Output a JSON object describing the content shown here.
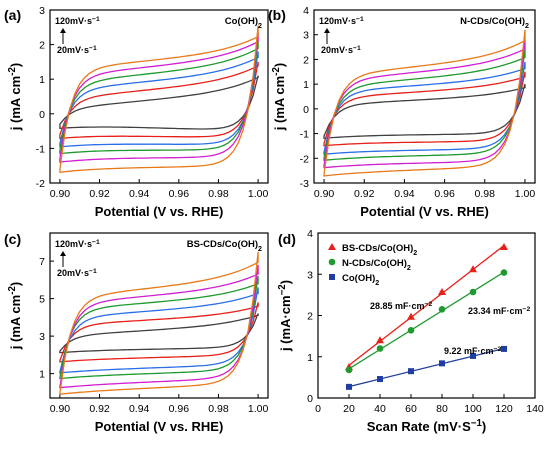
{
  "chart_data": [
    {
      "panel": "(a)",
      "type": "line",
      "title": "Co(OH)",
      "title_sub": "2",
      "xlabel": "Potential (V vs. RHE)",
      "ylabel_main": "j (mA cm",
      "ylabel_sup": "-2",
      "ylabel_close": ")",
      "xlim": [
        0.895,
        1.005
      ],
      "ylim": [
        -2,
        3
      ],
      "xticks": [
        "0.90",
        "0.92",
        "0.94",
        "0.96",
        "0.98",
        "1.00"
      ],
      "yticks": [
        "-2",
        "-1",
        "0",
        "1",
        "2",
        "3"
      ],
      "annotation_top": "120mV·s",
      "annotation_bottom": "20mV·s",
      "annotation_sup": "−1",
      "series": [
        {
          "scan_rate": 20,
          "color": "#404040",
          "upper": 0.2,
          "lower": -0.3,
          "upper_end": 1.1,
          "lower_end": -0.5
        },
        {
          "scan_rate": 40,
          "color": "#e8201a",
          "upper": 0.55,
          "lower": -0.6,
          "upper_end": 1.5,
          "lower_end": -0.7
        },
        {
          "scan_rate": 60,
          "color": "#2a6fe8",
          "upper": 0.85,
          "lower": -0.85,
          "upper_end": 1.8,
          "lower_end": -0.9
        },
        {
          "scan_rate": 80,
          "color": "#1f9a2e",
          "upper": 1.1,
          "lower": -1.05,
          "upper_end": 2.1,
          "lower_end": -1.05
        },
        {
          "scan_rate": 100,
          "color": "#d21fd2",
          "upper": 1.35,
          "lower": -1.3,
          "upper_end": 2.35,
          "lower_end": -1.25
        },
        {
          "scan_rate": 120,
          "color": "#e87a1a",
          "upper": 1.6,
          "lower": -1.6,
          "upper_end": 2.55,
          "lower_end": -1.5
        }
      ]
    },
    {
      "panel": "(b)",
      "type": "line",
      "title": "N-CDs/Co(OH)",
      "title_sub": "2",
      "xlabel": "Potential (V vs. RHE)",
      "ylabel_main": "j (mA cm",
      "ylabel_sup": "-2",
      "ylabel_close": ")",
      "xlim": [
        0.895,
        1.005
      ],
      "ylim": [
        -3,
        4
      ],
      "xticks": [
        "0.90",
        "0.92",
        "0.94",
        "0.96",
        "0.98",
        "1.00"
      ],
      "yticks": [
        "-3",
        "-2",
        "-1",
        "0",
        "1",
        "2",
        "3",
        "4"
      ],
      "annotation_top": "120mV·s",
      "annotation_bottom": "20mV·s",
      "annotation_sup": "−1",
      "series": [
        {
          "scan_rate": 20,
          "color": "#404040",
          "upper": 0.3,
          "lower": -1.1,
          "upper_end": 1.0,
          "lower_end": -1.0
        },
        {
          "scan_rate": 40,
          "color": "#e8201a",
          "upper": 0.65,
          "lower": -1.4,
          "upper_end": 1.5,
          "lower_end": -1.3
        },
        {
          "scan_rate": 60,
          "color": "#2a6fe8",
          "upper": 0.95,
          "lower": -1.75,
          "upper_end": 1.9,
          "lower_end": -1.6
        },
        {
          "scan_rate": 80,
          "color": "#1f9a2e",
          "upper": 1.2,
          "lower": -2.0,
          "upper_end": 2.4,
          "lower_end": -1.8
        },
        {
          "scan_rate": 100,
          "color": "#d21fd2",
          "upper": 1.5,
          "lower": -2.3,
          "upper_end": 2.8,
          "lower_end": -2.1
        },
        {
          "scan_rate": 120,
          "color": "#e87a1a",
          "upper": 1.75,
          "lower": -2.65,
          "upper_end": 3.2,
          "lower_end": -2.3
        }
      ]
    },
    {
      "panel": "(c)",
      "type": "line",
      "title": "BS-CDs/Co(OH)",
      "title_sub": "2",
      "xlabel": "Potential (V vs. RHE)",
      "ylabel_main": "j (mA cm",
      "ylabel_sup": "-2",
      "ylabel_close": ")",
      "xlim": [
        0.895,
        1.005
      ],
      "ylim": [
        -0.3,
        8.5
      ],
      "xticks": [
        "0.90",
        "0.92",
        "0.94",
        "0.96",
        "0.98",
        "1.00"
      ],
      "yticks": [
        "1",
        "3",
        "5",
        "7"
      ],
      "yticks_values": [
        1,
        3,
        5,
        7
      ],
      "annotation_top": "120mV·s",
      "annotation_bottom": "20mV·s",
      "annotation_sup": "−1",
      "series": [
        {
          "scan_rate": 20,
          "color": "#404040",
          "upper": 3.1,
          "lower": 2.2,
          "upper_end": 4.2,
          "lower_end": 2.4
        },
        {
          "scan_rate": 40,
          "color": "#e8201a",
          "upper": 3.8,
          "lower": 1.7,
          "upper_end": 4.8,
          "lower_end": 2.0
        },
        {
          "scan_rate": 60,
          "color": "#2a6fe8",
          "upper": 4.3,
          "lower": 1.1,
          "upper_end": 5.6,
          "lower_end": 1.5
        },
        {
          "scan_rate": 80,
          "color": "#1f9a2e",
          "upper": 4.8,
          "lower": 0.8,
          "upper_end": 6.2,
          "lower_end": 1.2
        },
        {
          "scan_rate": 100,
          "color": "#d21fd2",
          "upper": 5.2,
          "lower": 0.3,
          "upper_end": 6.8,
          "lower_end": 0.8
        },
        {
          "scan_rate": 120,
          "color": "#e87a1a",
          "upper": 5.6,
          "lower": -0.05,
          "upper_end": 7.5,
          "lower_end": 0.5
        }
      ]
    },
    {
      "panel": "(d)",
      "type": "scatter",
      "xlabel": "Scan Rate (mV·S",
      "xlabel_sup": "−1",
      "xlabel_close": ")",
      "ylabel_main": "j (mA·cm",
      "ylabel_sup": "−2",
      "ylabel_close": ")",
      "xlim": [
        0,
        140
      ],
      "ylim": [
        0,
        4
      ],
      "xticks": [
        "0",
        "20",
        "40",
        "60",
        "80",
        "100",
        "120",
        "140"
      ],
      "yticks": [
        "0",
        "1",
        "2",
        "3",
        "4"
      ],
      "x": [
        20,
        40,
        60,
        80,
        100,
        120
      ],
      "series": [
        {
          "name": "BS-CDs/Co(OH)",
          "name_sub": "2",
          "color": "#e8201a",
          "marker": "triangle",
          "values": [
            0.75,
            1.4,
            1.97,
            2.57,
            3.12,
            3.66
          ],
          "slope_label": "28.85 mF·cm",
          "slope_sup": "−2"
        },
        {
          "name": "N-CDs/Co(OH)",
          "name_sub": "2",
          "color": "#1f9a2e",
          "marker": "circle",
          "values": [
            0.68,
            1.2,
            1.64,
            2.15,
            2.57,
            3.04
          ],
          "slope_label": "23.34 mF·cm",
          "slope_sup": "−2"
        },
        {
          "name": "Co(OH)",
          "name_sub": "2",
          "color": "#1f3fa0",
          "marker": "square",
          "values": [
            0.27,
            0.46,
            0.65,
            0.84,
            1.02,
            1.19
          ],
          "slope_label": "9.22 mF·cm",
          "slope_sup": "−2"
        }
      ]
    }
  ]
}
